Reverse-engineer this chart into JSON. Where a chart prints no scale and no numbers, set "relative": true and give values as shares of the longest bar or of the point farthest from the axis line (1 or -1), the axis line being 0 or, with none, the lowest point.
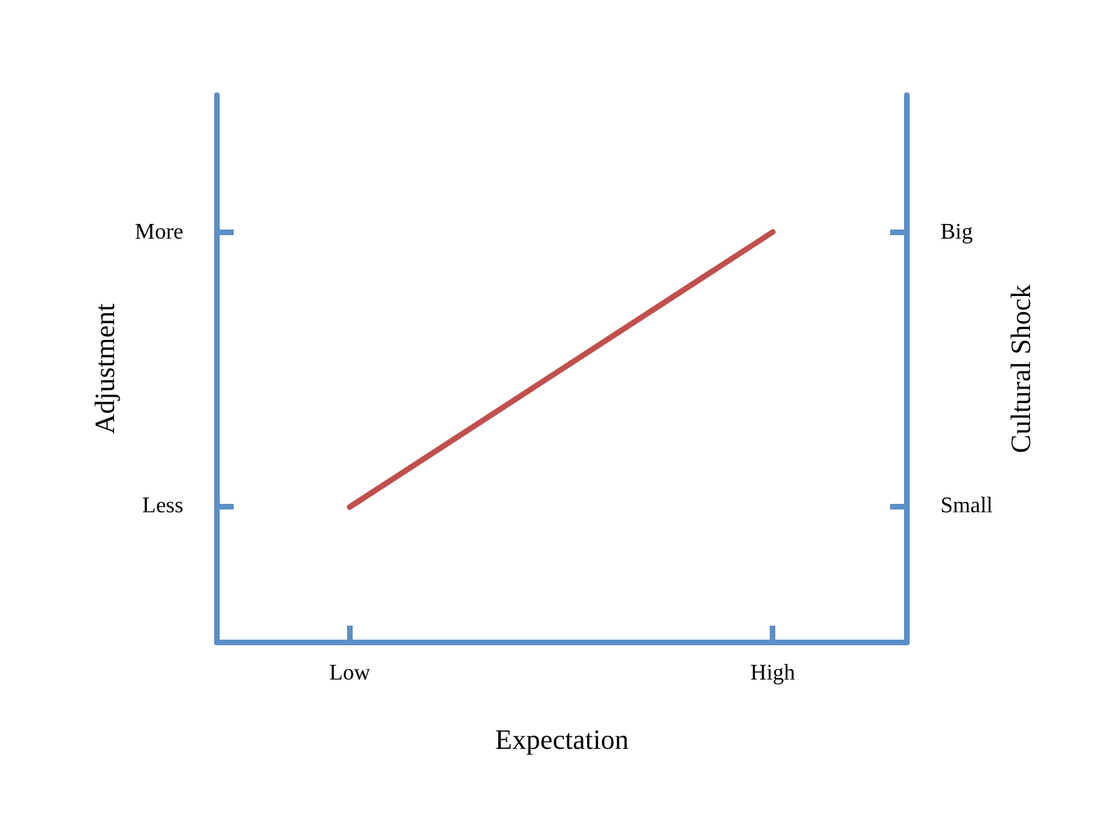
{
  "chart_data": {
    "type": "line",
    "xlabel": "Expectation",
    "ylabel": "Adjustment",
    "y2label": "Cultural Shock",
    "categories": [
      "Low",
      "High"
    ],
    "y_categories": [
      "More",
      "Less"
    ],
    "y2_categories": [
      "Big",
      "Small"
    ],
    "relative": true,
    "series": [
      {
        "color": "#c0504d",
        "values": [
          0.33,
          1
        ]
      }
    ],
    "grid": false,
    "marker": "none",
    "line_style": "solid"
  }
}
